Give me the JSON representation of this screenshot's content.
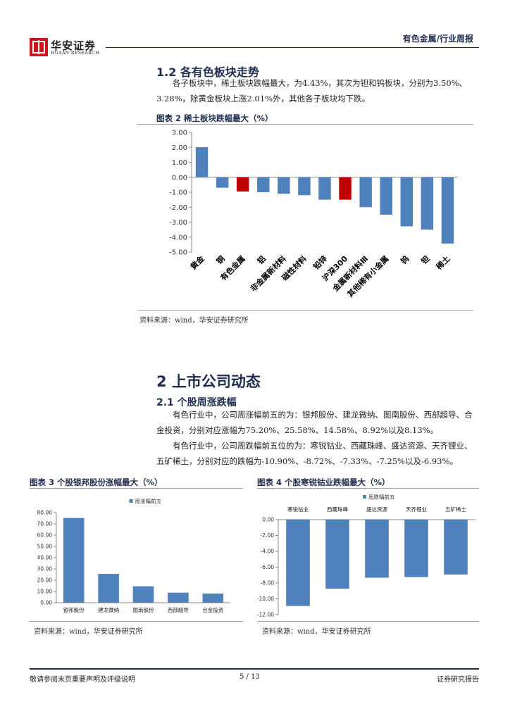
{
  "header": {
    "logo": "华安证券",
    "logo_sub": "HUAAN RESEARCH",
    "report_type": "有色金属/行业周报"
  },
  "section_1_2": {
    "heading": "1.2 各有色板块走势",
    "paragraph": "各子板块中，稀土板块跌幅最大，为4.43%，其次为钽和钨板块，分别为3.50%、3.28%，除黄金板块上涨2.01%外，其他各子板块均下跌。"
  },
  "section_2": {
    "heading": "2 上市公司动态",
    "subheading": "2.1 个股周涨跌幅",
    "paragraphs": [
      "有色行业中，公司周涨幅前五的为：银邦股份、建龙微纳、图南股份、西部超导、合金投资，分别对应涨幅为75.20%、25.58%、14.58%、8.92%以及8.13%。",
      "有色行业中，公司周跌幅前五位的为：寒锐钴业、西藏珠峰、盛达资源、天齐锂业、五矿稀土，分别对应的跌幅为-10.90%、-8.72%、-7.33%、-7.25%以及-6.93%。"
    ]
  },
  "chart_data": [
    {
      "type": "bar",
      "title": "图表 2 稀土板块跌幅最大（%）",
      "source": "资料来源：wind，华安证券研究所",
      "categories": [
        "黄金",
        "铜",
        "有色金属",
        "铝",
        "非金属新材料",
        "磁性材料",
        "铅锌",
        "沪深300",
        "金属新材料Ⅲ",
        "其他稀有小金属",
        "钨",
        "钽",
        "稀土"
      ],
      "values": [
        2.01,
        -0.7,
        -0.95,
        -1.0,
        -1.1,
        -1.2,
        -1.5,
        -1.5,
        -2.0,
        -2.5,
        -3.28,
        -3.5,
        -4.43
      ],
      "colors": [
        "#4f81bd",
        "#4f81bd",
        "#c00000",
        "#4f81bd",
        "#4f81bd",
        "#4f81bd",
        "#4f81bd",
        "#c00000",
        "#4f81bd",
        "#4f81bd",
        "#4f81bd",
        "#4f81bd",
        "#4f81bd"
      ],
      "ylim": [
        -5,
        3
      ],
      "yticks": [
        {
          "value": 3,
          "label": "3.00"
        },
        {
          "value": 2,
          "label": "2.00"
        },
        {
          "value": 1,
          "label": "1.00"
        },
        {
          "value": 0,
          "label": "0.00"
        },
        {
          "value": -1,
          "label": "-1.00"
        },
        {
          "value": -2,
          "label": "-2.00"
        },
        {
          "value": -3,
          "label": "-3.00"
        },
        {
          "value": -4,
          "label": "-4.00"
        },
        {
          "value": -5,
          "label": "-5.00"
        }
      ],
      "category_label_position": "bottom"
    },
    {
      "type": "bar",
      "title": "图表 3 个股银邦股份涨幅最大（%）",
      "source": "资料来源：wind，华安证券研究所",
      "categories": [
        "银邦股份",
        "建龙微纳",
        "图南股份",
        "西部超导",
        "合金投资"
      ],
      "series": [
        {
          "name": "周涨幅前五",
          "color": "#4f81bd",
          "values": [
            75.2,
            25.58,
            14.58,
            8.92,
            8.13
          ]
        }
      ],
      "ylim": [
        0,
        80
      ],
      "yticks": [
        {
          "value": 0,
          "label": "0.00"
        },
        {
          "value": 10,
          "label": "10.00"
        },
        {
          "value": 20,
          "label": "20.00"
        },
        {
          "value": 30,
          "label": "30.00"
        },
        {
          "value": 40,
          "label": "40.00"
        },
        {
          "value": 50,
          "label": "50.00"
        },
        {
          "value": 60,
          "label": "60.00"
        },
        {
          "value": 70,
          "label": "70.00"
        },
        {
          "value": 80,
          "label": "80.00"
        }
      ],
      "category_label_position": "bottom"
    },
    {
      "type": "bar",
      "title": "图表 4 个股寒锐钴业跌幅最大（%）",
      "source": "资料来源：wind，华安证券研究所",
      "categories": [
        "寒锐钴业",
        "西藏珠峰",
        "盛达资源",
        "天齐锂业",
        "五矿稀土"
      ],
      "series": [
        {
          "name": "周跌幅前五",
          "color": "#4f81bd",
          "values": [
            -10.9,
            -8.72,
            -7.33,
            -7.25,
            -6.93
          ]
        }
      ],
      "ylim": [
        -12,
        0
      ],
      "yticks": [
        {
          "value": 0,
          "label": "0.00"
        },
        {
          "value": -2,
          "label": "-2.00"
        },
        {
          "value": -4,
          "label": "-4.00"
        },
        {
          "value": -6,
          "label": "-6.00"
        },
        {
          "value": -8,
          "label": "-8.00"
        },
        {
          "value": -10,
          "label": "-10.00"
        },
        {
          "value": -12,
          "label": "-12.00"
        }
      ],
      "category_label_position": "top"
    }
  ],
  "footer": {
    "disclaimer": "敬请参阅末页重要声明及评级说明",
    "page": "5 / 13",
    "label": "证券研究报告"
  }
}
